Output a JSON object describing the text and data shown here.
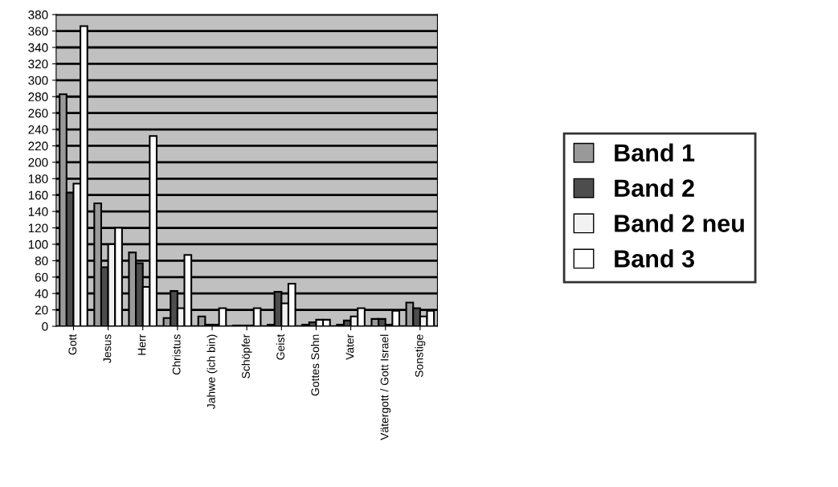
{
  "chart_data": {
    "type": "bar",
    "categories": [
      "Gott",
      "Jesus",
      "Herr",
      "Christus",
      "Jahwe (ich bin)",
      "Schöpfer",
      "Geist",
      "Gottes Sohn",
      "Vater",
      "Vätergott / Gott Israel",
      "Sonstige"
    ],
    "series": [
      {
        "name": "Band 1",
        "color": "#999999",
        "values": [
          283,
          150,
          90,
          10,
          12,
          1,
          2,
          2,
          2,
          9,
          29
        ]
      },
      {
        "name": "Band 2",
        "color": "#4d4d4d",
        "values": [
          163,
          72,
          77,
          43,
          2,
          1,
          42,
          5,
          7,
          9,
          22
        ]
      },
      {
        "name": "Band 2 neu",
        "color": "#f2f2f2",
        "values": [
          174,
          100,
          48,
          22,
          2,
          1,
          28,
          8,
          12,
          2,
          12
        ]
      },
      {
        "name": "Band 3",
        "color": "#ffffff",
        "values": [
          366,
          120,
          232,
          87,
          22,
          22,
          52,
          8,
          22,
          19,
          19
        ]
      }
    ],
    "ylim": [
      0,
      380
    ],
    "yticks": [
      0,
      20,
      40,
      60,
      80,
      100,
      120,
      140,
      160,
      180,
      200,
      220,
      240,
      260,
      280,
      300,
      320,
      340,
      360,
      380
    ],
    "grid": "y",
    "legend": "right"
  }
}
